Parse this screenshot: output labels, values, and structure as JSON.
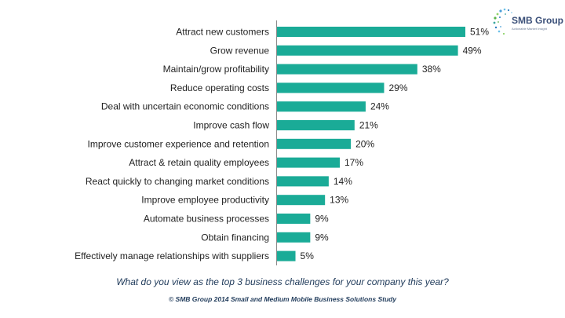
{
  "chart_data": {
    "type": "bar",
    "orientation": "horizontal",
    "categories": [
      "Attract new customers",
      "Grow revenue",
      "Maintain/grow profitability",
      "Reduce operating costs",
      "Deal with uncertain economic conditions",
      "Improve cash flow",
      "Improve customer experience and retention",
      "Attract & retain quality employees",
      "React quickly to changing market conditions",
      "Improve employee productivity",
      "Automate business processes",
      "Obtain financing",
      "Effectively manage relationships with suppliers"
    ],
    "values": [
      51,
      49,
      38,
      29,
      24,
      21,
      20,
      17,
      14,
      13,
      9,
      9,
      5
    ],
    "value_labels": [
      "51%",
      "49%",
      "38%",
      "29%",
      "24%",
      "21%",
      "20%",
      "17%",
      "14%",
      "13%",
      "9%",
      "9%",
      "5%"
    ],
    "bar_color": "#1aab97",
    "axis_color": "#8a8a8a",
    "xlim": [
      0,
      51
    ],
    "grid": false,
    "legend": "none"
  },
  "question": "What  do you view as the top 3 business challenges for your company this year?",
  "source": "© SMB Group 2014 Small and Medium Mobile Business Solutions Study",
  "logo": {
    "name": "SMB Group",
    "tagline": "Actionable Market Insight"
  }
}
